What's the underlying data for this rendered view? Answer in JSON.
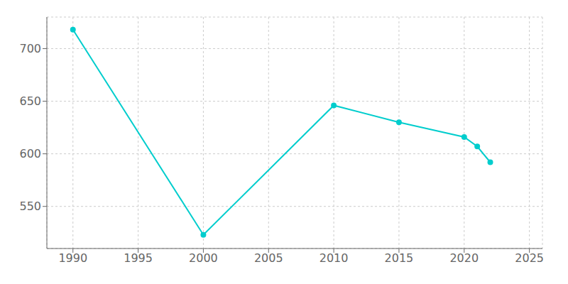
{
  "chart_data": {
    "type": "line",
    "x": [
      1990,
      2000,
      2010,
      2015,
      2020,
      2021,
      2022
    ],
    "values": [
      718,
      523,
      646,
      630,
      616,
      607,
      592
    ],
    "color": "#00CDCD",
    "marker": "circle",
    "xlim": [
      1988,
      2026
    ],
    "ylim": [
      510,
      730
    ],
    "xticks": [
      1990,
      1995,
      2000,
      2005,
      2010,
      2015,
      2020,
      2025
    ],
    "yticks": [
      550,
      600,
      650,
      700
    ],
    "grid": true
  }
}
